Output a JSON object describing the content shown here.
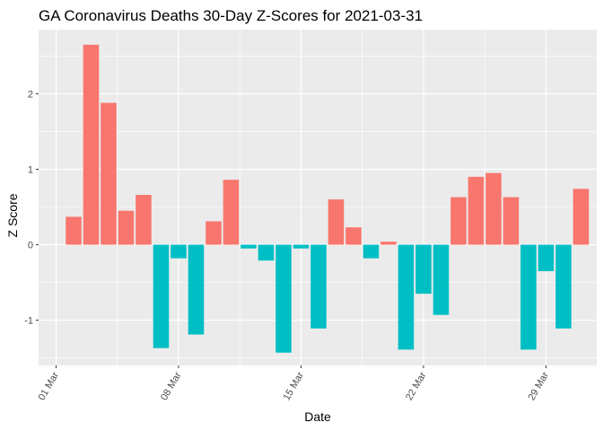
{
  "chart_data": {
    "type": "bar",
    "title": "GA Coronavirus Deaths 30-Day Z-Scores for 2021-03-31",
    "xlabel": "Date",
    "ylabel": "Z Score",
    "x_tick_labels": [
      "01 Mar",
      "08 Mar",
      "15 Mar",
      "22 Mar",
      "29 Mar"
    ],
    "x_tick_days": [
      1,
      8,
      15,
      22,
      29
    ],
    "y_ticks": [
      -1,
      0,
      1,
      2
    ],
    "ylim": [
      -1.6,
      2.85
    ],
    "xlim_days": [
      0.0,
      31.9
    ],
    "colors": {
      "positive": "#F8766D",
      "negative": "#00BFC4",
      "panel": "#EBEBEB",
      "grid": "#FFFFFF"
    },
    "categories": [
      "2021-03-02",
      "2021-03-03",
      "2021-03-04",
      "2021-03-05",
      "2021-03-06",
      "2021-03-07",
      "2021-03-08",
      "2021-03-09",
      "2021-03-10",
      "2021-03-11",
      "2021-03-12",
      "2021-03-13",
      "2021-03-14",
      "2021-03-15",
      "2021-03-16",
      "2021-03-17",
      "2021-03-18",
      "2021-03-19",
      "2021-03-20",
      "2021-03-21",
      "2021-03-22",
      "2021-03-23",
      "2021-03-24",
      "2021-03-25",
      "2021-03-26",
      "2021-03-27",
      "2021-03-28",
      "2021-03-29",
      "2021-03-30",
      "2021-03-31"
    ],
    "days": [
      2,
      3,
      4,
      5,
      6,
      7,
      8,
      9,
      10,
      11,
      12,
      13,
      14,
      15,
      16,
      17,
      18,
      19,
      20,
      21,
      22,
      23,
      24,
      25,
      26,
      27,
      28,
      29,
      30,
      31
    ],
    "values": [
      0.37,
      2.65,
      1.88,
      0.45,
      0.66,
      -1.37,
      -0.18,
      -1.19,
      0.31,
      0.86,
      -0.05,
      -0.21,
      -1.43,
      -0.05,
      -1.11,
      0.6,
      0.23,
      -0.18,
      0.04,
      -1.39,
      -0.65,
      -0.93,
      0.63,
      0.9,
      0.95,
      0.63,
      -1.39,
      -0.35,
      -1.11,
      0.74
    ]
  }
}
